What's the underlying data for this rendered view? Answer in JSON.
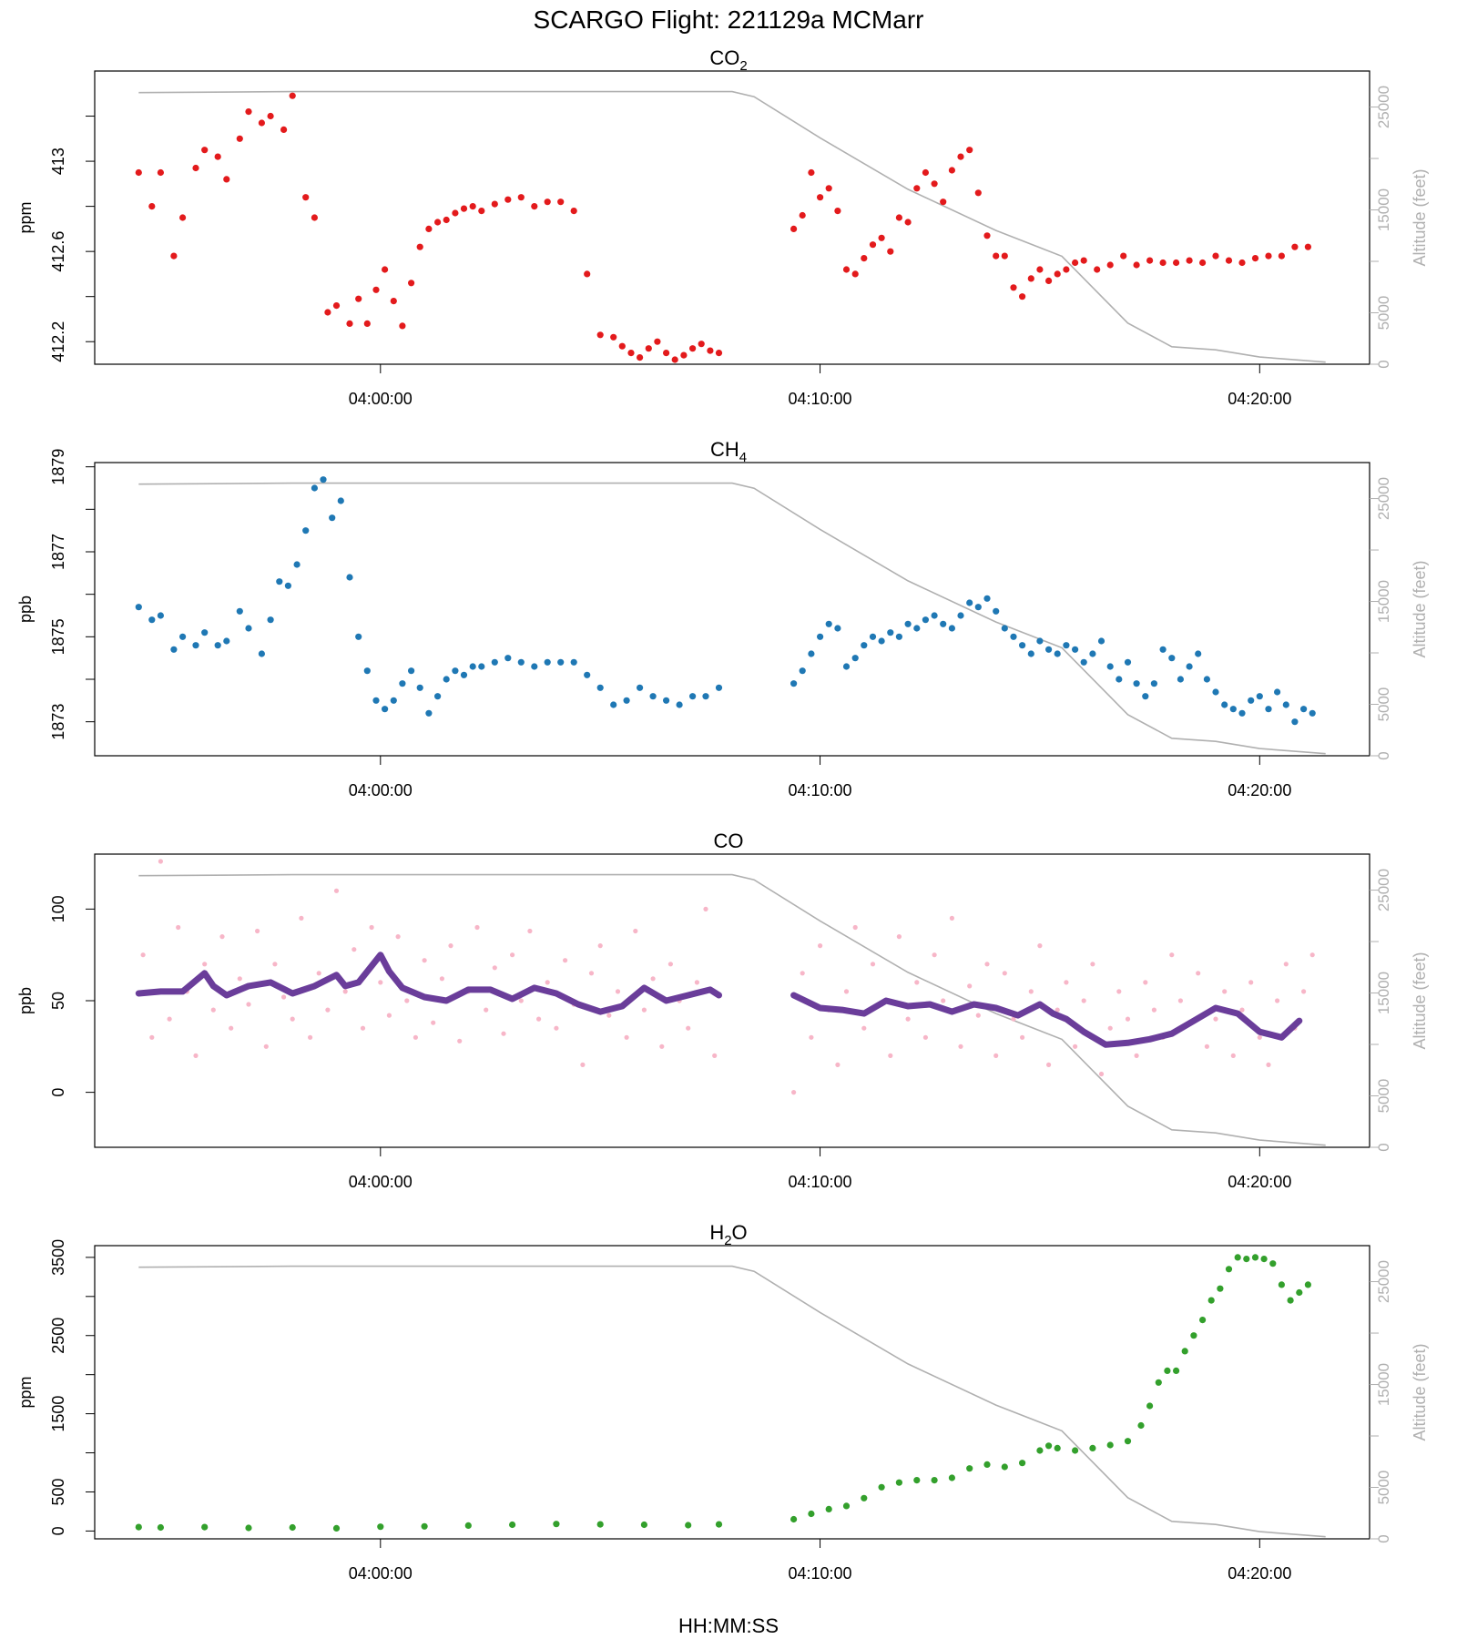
{
  "title": "SCARGO Flight: 221129a  MCMarr",
  "xlabel": "HH:MM:SS",
  "time_ticks": [
    "04:00:00",
    "04:10:00",
    "04:20:00"
  ],
  "altitude_axis": {
    "label": "Altitude (feet)",
    "ticks": [
      0,
      5000,
      15000,
      25000
    ],
    "color": "#b0b0b0",
    "profile": [
      [
        -5.5,
        26400
      ],
      [
        -2.0,
        26500
      ],
      [
        8.0,
        26500
      ],
      [
        8.5,
        26000
      ],
      [
        10.0,
        22000
      ],
      [
        12.0,
        17000
      ],
      [
        14.0,
        13000
      ],
      [
        15.5,
        10500
      ],
      [
        17.0,
        4000
      ],
      [
        18.0,
        1700
      ],
      [
        19.0,
        1400
      ],
      [
        20.0,
        700
      ],
      [
        21.5,
        200
      ]
    ]
  },
  "chart_data": [
    {
      "type": "scatter",
      "title": "CO",
      "title_sub": "2",
      "ylabel": "ppm",
      "ylim": [
        412.1,
        413.4
      ],
      "y_ticks": [
        412.2,
        412.6,
        413.0
      ],
      "y_minor_ticks": [
        412.2,
        412.4,
        412.6,
        412.8,
        413.0,
        413.2
      ],
      "point_color": "#e31a1c",
      "series": [
        {
          "name": "CO2",
          "x": [
            -5.5,
            -5.2,
            -5.0,
            -4.7,
            -4.5,
            -4.2,
            -4.0,
            -3.7,
            -3.5,
            -3.2,
            -3.0,
            -2.7,
            -2.5,
            -2.2,
            -2.0,
            -1.7,
            -1.5,
            -1.2,
            -1.0,
            -0.7,
            -0.5,
            -0.3,
            -0.1,
            0.1,
            0.3,
            0.5,
            0.7,
            0.9,
            1.1,
            1.3,
            1.5,
            1.7,
            1.9,
            2.1,
            2.3,
            2.6,
            2.9,
            3.2,
            3.5,
            3.8,
            4.1,
            4.4,
            4.7,
            5.0,
            5.3,
            5.5,
            5.7,
            5.9,
            6.1,
            6.3,
            6.5,
            6.7,
            6.9,
            7.1,
            7.3,
            7.5,
            7.7,
            9.4,
            9.6,
            9.8,
            10.0,
            10.2,
            10.4,
            10.6,
            10.8,
            11.0,
            11.2,
            11.4,
            11.6,
            11.8,
            12.0,
            12.2,
            12.4,
            12.6,
            12.8,
            13.0,
            13.2,
            13.4,
            13.6,
            13.8,
            14.0,
            14.2,
            14.4,
            14.6,
            14.8,
            15.0,
            15.2,
            15.4,
            15.6,
            15.8,
            16.0,
            16.3,
            16.6,
            16.9,
            17.2,
            17.5,
            17.8,
            18.1,
            18.4,
            18.7,
            19.0,
            19.3,
            19.6,
            19.9,
            20.2,
            20.5,
            20.8,
            21.1
          ],
          "y": [
            412.95,
            412.8,
            412.95,
            412.58,
            412.75,
            412.97,
            413.05,
            413.02,
            412.92,
            413.1,
            413.22,
            413.17,
            413.2,
            413.14,
            413.29,
            412.84,
            412.75,
            412.33,
            412.36,
            412.28,
            412.39,
            412.28,
            412.43,
            412.52,
            412.38,
            412.27,
            412.46,
            412.62,
            412.7,
            412.73,
            412.74,
            412.77,
            412.79,
            412.8,
            412.78,
            412.81,
            412.83,
            412.84,
            412.8,
            412.82,
            412.82,
            412.78,
            412.5,
            412.23,
            412.22,
            412.18,
            412.15,
            412.13,
            412.17,
            412.2,
            412.15,
            412.12,
            412.14,
            412.17,
            412.19,
            412.16,
            412.15,
            412.7,
            412.76,
            412.95,
            412.84,
            412.88,
            412.78,
            412.52,
            412.5,
            412.57,
            412.63,
            412.66,
            412.6,
            412.75,
            412.73,
            412.88,
            412.95,
            412.9,
            412.82,
            412.96,
            413.02,
            413.05,
            412.86,
            412.67,
            412.58,
            412.58,
            412.44,
            412.4,
            412.48,
            412.52,
            412.47,
            412.5,
            412.52,
            412.55,
            412.56,
            412.52,
            412.54,
            412.58,
            412.54,
            412.56,
            412.55,
            412.55,
            412.56,
            412.55,
            412.58,
            412.56,
            412.55,
            412.57,
            412.58,
            412.58,
            412.62,
            412.62
          ]
        }
      ]
    },
    {
      "type": "scatter",
      "title": "CH",
      "title_sub": "4",
      "ylabel": "ppb",
      "ylim": [
        1872.2,
        1879.1
      ],
      "y_ticks": [
        1873,
        1875,
        1877,
        1879
      ],
      "y_minor_ticks": [
        1873,
        1874,
        1875,
        1876,
        1877,
        1878,
        1879
      ],
      "point_color": "#1f78b4",
      "series": [
        {
          "name": "CH4",
          "x": [
            -5.5,
            -5.2,
            -5.0,
            -4.7,
            -4.5,
            -4.2,
            -4.0,
            -3.7,
            -3.5,
            -3.2,
            -3.0,
            -2.7,
            -2.5,
            -2.3,
            -2.1,
            -1.9,
            -1.7,
            -1.5,
            -1.3,
            -1.1,
            -0.9,
            -0.7,
            -0.5,
            -0.3,
            -0.1,
            0.1,
            0.3,
            0.5,
            0.7,
            0.9,
            1.1,
            1.3,
            1.5,
            1.7,
            1.9,
            2.1,
            2.3,
            2.6,
            2.9,
            3.2,
            3.5,
            3.8,
            4.1,
            4.4,
            4.7,
            5.0,
            5.3,
            5.6,
            5.9,
            6.2,
            6.5,
            6.8,
            7.1,
            7.4,
            7.7,
            9.4,
            9.6,
            9.8,
            10.0,
            10.2,
            10.4,
            10.6,
            10.8,
            11.0,
            11.2,
            11.4,
            11.6,
            11.8,
            12.0,
            12.2,
            12.4,
            12.6,
            12.8,
            13.0,
            13.2,
            13.4,
            13.6,
            13.8,
            14.0,
            14.2,
            14.4,
            14.6,
            14.8,
            15.0,
            15.2,
            15.4,
            15.6,
            15.8,
            16.0,
            16.2,
            16.4,
            16.6,
            16.8,
            17.0,
            17.2,
            17.4,
            17.6,
            17.8,
            18.0,
            18.2,
            18.4,
            18.6,
            18.8,
            19.0,
            19.2,
            19.4,
            19.6,
            19.8,
            20.0,
            20.2,
            20.4,
            20.6,
            20.8,
            21.0,
            21.2
          ],
          "y": [
            1875.7,
            1875.4,
            1875.5,
            1874.7,
            1875.0,
            1874.8,
            1875.1,
            1874.8,
            1874.9,
            1875.6,
            1875.2,
            1874.6,
            1875.4,
            1876.3,
            1876.2,
            1876.7,
            1877.5,
            1878.5,
            1878.7,
            1877.8,
            1878.2,
            1876.4,
            1875.0,
            1874.2,
            1873.5,
            1873.3,
            1873.5,
            1873.9,
            1874.2,
            1873.8,
            1873.2,
            1873.6,
            1874.0,
            1874.2,
            1874.1,
            1874.3,
            1874.3,
            1874.4,
            1874.5,
            1874.4,
            1874.3,
            1874.4,
            1874.4,
            1874.4,
            1874.1,
            1873.8,
            1873.4,
            1873.5,
            1873.8,
            1873.6,
            1873.5,
            1873.4,
            1873.6,
            1873.6,
            1873.8,
            1873.9,
            1874.2,
            1874.6,
            1875.0,
            1875.3,
            1875.2,
            1874.3,
            1874.5,
            1874.8,
            1875.0,
            1874.9,
            1875.1,
            1875.0,
            1875.3,
            1875.2,
            1875.4,
            1875.5,
            1875.3,
            1875.2,
            1875.5,
            1875.8,
            1875.7,
            1875.9,
            1875.6,
            1875.2,
            1875.0,
            1874.8,
            1874.6,
            1874.9,
            1874.7,
            1874.6,
            1874.8,
            1874.7,
            1874.4,
            1874.6,
            1874.9,
            1874.3,
            1874.0,
            1874.4,
            1873.9,
            1873.6,
            1873.9,
            1874.7,
            1874.5,
            1874.0,
            1874.3,
            1874.6,
            1874.0,
            1873.7,
            1873.4,
            1873.3,
            1873.2,
            1873.5,
            1873.6,
            1873.3,
            1873.7,
            1873.4,
            1873.0,
            1873.3,
            1873.2
          ]
        }
      ]
    },
    {
      "type": "scatter",
      "title": "CO",
      "title_sub": "",
      "ylabel": "ppb",
      "ylim": [
        -30,
        130
      ],
      "y_ticks": [
        0,
        50,
        100
      ],
      "y_minor_ticks": [
        0,
        50,
        100
      ],
      "point_color": "#f7b6c8",
      "line_color": "#6a3d9a",
      "series": [
        {
          "name": "CO raw",
          "x": [
            -5.4,
            -5.2,
            -5.0,
            -4.8,
            -4.6,
            -4.4,
            -4.2,
            -4.0,
            -3.8,
            -3.6,
            -3.4,
            -3.2,
            -3.0,
            -2.8,
            -2.6,
            -2.4,
            -2.2,
            -2.0,
            -1.8,
            -1.6,
            -1.4,
            -1.2,
            -1.0,
            -0.8,
            -0.6,
            -0.4,
            -0.2,
            0.0,
            0.2,
            0.4,
            0.6,
            0.8,
            1.0,
            1.2,
            1.4,
            1.6,
            1.8,
            2.0,
            2.2,
            2.4,
            2.6,
            2.8,
            3.0,
            3.2,
            3.4,
            3.6,
            3.8,
            4.0,
            4.2,
            4.4,
            4.6,
            4.8,
            5.0,
            5.2,
            5.4,
            5.6,
            5.8,
            6.0,
            6.2,
            6.4,
            6.6,
            6.8,
            7.0,
            7.2,
            7.4,
            7.6,
            9.4,
            9.6,
            9.8,
            10.0,
            10.2,
            10.4,
            10.6,
            10.8,
            11.0,
            11.2,
            11.4,
            11.6,
            11.8,
            12.0,
            12.2,
            12.4,
            12.6,
            12.8,
            13.0,
            13.2,
            13.4,
            13.6,
            13.8,
            14.0,
            14.2,
            14.4,
            14.6,
            14.8,
            15.0,
            15.2,
            15.4,
            15.6,
            15.8,
            16.0,
            16.2,
            16.4,
            16.6,
            16.8,
            17.0,
            17.2,
            17.4,
            17.6,
            17.8,
            18.0,
            18.2,
            18.4,
            18.6,
            18.8,
            19.0,
            19.2,
            19.4,
            19.6,
            19.8,
            20.0,
            20.2,
            20.4,
            20.6,
            20.8,
            21.0,
            21.2
          ],
          "y": [
            75,
            30,
            126,
            40,
            90,
            55,
            20,
            70,
            45,
            85,
            35,
            62,
            48,
            88,
            25,
            70,
            52,
            40,
            95,
            30,
            65,
            45,
            110,
            55,
            78,
            35,
            90,
            60,
            42,
            85,
            50,
            30,
            72,
            38,
            62,
            80,
            28,
            55,
            90,
            45,
            68,
            32,
            75,
            50,
            88,
            40,
            60,
            35,
            72,
            48,
            15,
            65,
            80,
            42,
            55,
            30,
            88,
            45,
            62,
            25,
            70,
            50,
            35,
            60,
            100,
            20,
            0,
            65,
            30,
            80,
            45,
            15,
            55,
            90,
            35,
            70,
            48,
            20,
            85,
            40,
            60,
            30,
            75,
            50,
            95,
            25,
            58,
            42,
            70,
            20,
            65,
            40,
            30,
            55,
            80,
            15,
            45,
            60,
            25,
            50,
            70,
            10,
            35,
            55,
            40,
            20,
            60,
            45,
            30,
            75,
            50,
            38,
            65,
            25,
            40,
            55,
            20,
            45,
            60,
            30,
            15,
            50,
            70,
            35,
            55,
            75
          ]
        },
        {
          "name": "CO smoothed",
          "x": [
            -5.5,
            -5.0,
            -4.5,
            -4.0,
            -3.8,
            -3.5,
            -3.0,
            -2.5,
            -2.0,
            -1.5,
            -1.0,
            -0.8,
            -0.5,
            0.0,
            0.2,
            0.5,
            1.0,
            1.5,
            2.0,
            2.5,
            3.0,
            3.5,
            4.0,
            4.5,
            5.0,
            5.5,
            6.0,
            6.5,
            7.0,
            7.5,
            7.7,
            9.4,
            10.0,
            10.5,
            11.0,
            11.5,
            12.0,
            12.5,
            13.0,
            13.5,
            14.0,
            14.5,
            15.0,
            15.3,
            15.6,
            16.0,
            16.5,
            17.0,
            17.5,
            18.0,
            18.5,
            19.0,
            19.5,
            20.0,
            20.5,
            20.9
          ],
          "y": [
            54,
            55,
            55,
            65,
            58,
            53,
            58,
            60,
            54,
            58,
            64,
            58,
            60,
            75,
            66,
            57,
            52,
            50,
            56,
            56,
            51,
            57,
            54,
            48,
            44,
            47,
            57,
            50,
            53,
            56,
            53,
            53,
            46,
            45,
            43,
            50,
            47,
            48,
            44,
            48,
            46,
            42,
            48,
            43,
            40,
            33,
            26,
            27,
            29,
            32,
            39,
            46,
            43,
            33,
            30,
            39
          ]
        }
      ]
    },
    {
      "type": "scatter",
      "title": "H",
      "title_sub": "2",
      "title_tail": "O",
      "ylabel": "ppm",
      "ylim": [
        -100,
        3650
      ],
      "y_ticks": [
        0,
        500,
        1500,
        2500,
        3500
      ],
      "y_minor_ticks": [
        0,
        500,
        1000,
        1500,
        2000,
        2500,
        3000,
        3500
      ],
      "point_color": "#33a02c",
      "series": [
        {
          "name": "H2O",
          "x": [
            -5.5,
            -5.0,
            -4.0,
            -3.0,
            -2.0,
            -1.0,
            0.0,
            1.0,
            2.0,
            3.0,
            4.0,
            5.0,
            6.0,
            7.0,
            7.7,
            9.4,
            9.8,
            10.2,
            10.6,
            11.0,
            11.4,
            11.8,
            12.2,
            12.6,
            13.0,
            13.4,
            13.8,
            14.2,
            14.6,
            15.0,
            15.2,
            15.4,
            15.8,
            16.2,
            16.6,
            17.0,
            17.3,
            17.5,
            17.7,
            17.9,
            18.1,
            18.3,
            18.5,
            18.7,
            18.9,
            19.1,
            19.3,
            19.5,
            19.7,
            19.9,
            20.1,
            20.3,
            20.5,
            20.7,
            20.9,
            21.1
          ],
          "y": [
            50,
            45,
            50,
            40,
            45,
            35,
            55,
            60,
            70,
            80,
            90,
            85,
            80,
            75,
            85,
            150,
            220,
            280,
            320,
            420,
            560,
            620,
            650,
            650,
            680,
            800,
            850,
            820,
            870,
            1030,
            1090,
            1060,
            1030,
            1060,
            1100,
            1150,
            1350,
            1600,
            1900,
            2050,
            2050,
            2300,
            2500,
            2700,
            2950,
            3100,
            3350,
            3500,
            3480,
            3500,
            3480,
            3420,
            3150,
            2950,
            3050,
            3150
          ]
        }
      ]
    }
  ]
}
